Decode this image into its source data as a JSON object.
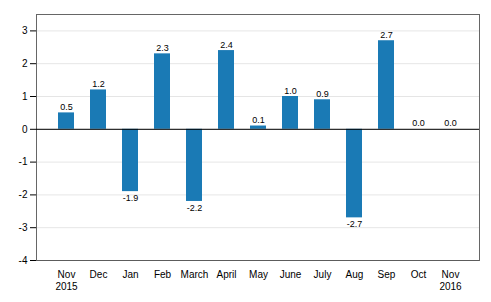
{
  "chart_data": {
    "type": "bar",
    "categories": [
      "Nov",
      "Dec",
      "Jan",
      "Feb",
      "March",
      "April",
      "May",
      "June",
      "July",
      "Aug",
      "Sep",
      "Oct",
      "Nov"
    ],
    "values": [
      0.5,
      1.2,
      -1.9,
      2.3,
      -2.2,
      2.4,
      0.1,
      1.0,
      0.9,
      -2.7,
      2.7,
      0.0,
      0.0
    ],
    "value_labels": [
      "0.5",
      "1.2",
      "-1.9",
      "2.3",
      "-2.2",
      "2.4",
      "0.1",
      "1.0",
      "0.9",
      "-2.7",
      "2.7",
      "0.0",
      "0.0"
    ],
    "color": "#1a7ab5",
    "ylim": [
      -4,
      3.5
    ],
    "yticks": [
      -4,
      -3,
      -2,
      -1,
      0,
      1,
      2,
      3
    ],
    "grid": true,
    "data_labels": true,
    "annotations": [
      {
        "text": "2015",
        "index": 0
      },
      {
        "text": "2016",
        "index": 12
      }
    ]
  }
}
